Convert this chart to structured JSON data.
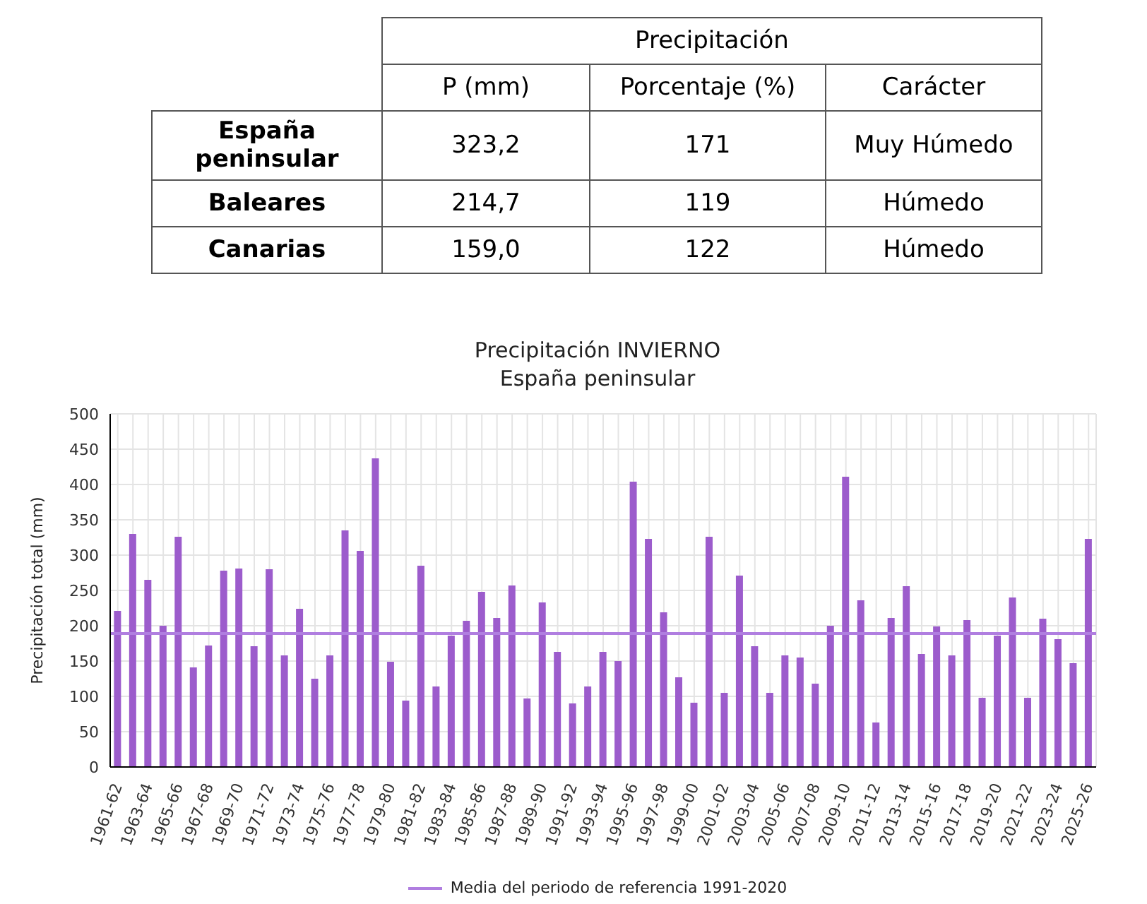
{
  "chart_data": [
    {
      "type": "other",
      "title": "Precipitación",
      "categories": [
        "P (mm)",
        "Porcentaje (%)",
        "Carácter"
      ],
      "y_categories": [
        "España peninsular",
        "Baleares",
        "Canarias"
      ],
      "cell_labels": [
        [
          "323,2",
          "171",
          "Muy Húmedo"
        ],
        [
          "214,7",
          "119",
          "Húmedo"
        ],
        [
          "159,0",
          "122",
          "Húmedo"
        ]
      ]
    },
    {
      "type": "bar",
      "title": "Precipitación INVIERNO",
      "subtitle": "España peninsular",
      "ylabel": "Precipitación total (mm)",
      "categories": [
        "1961-62",
        null,
        "1963-64",
        null,
        "1965-66",
        null,
        "1967-68",
        null,
        "1969-70",
        null,
        "1971-72",
        null,
        "1973-74",
        null,
        "1975-76",
        null,
        "1977-78",
        null,
        "1979-80",
        null,
        "1981-82",
        null,
        "1983-84",
        null,
        "1985-86",
        null,
        "1987-88",
        null,
        "1989-90",
        null,
        "1991-92",
        null,
        "1993-94",
        null,
        "1995-96",
        null,
        "1997-98",
        null,
        "1999-00",
        null,
        "2001-02",
        null,
        "2003-04",
        null,
        "2005-06",
        null,
        "2007-08",
        null,
        "2009-10",
        null,
        "2011-12",
        null,
        "2013-14",
        null,
        "2015-16",
        null,
        "2017-18",
        null,
        "2019-20",
        null,
        "2021-22",
        null,
        "2023-24",
        null,
        "2025-26"
      ],
      "values": [
        221,
        330,
        265,
        200,
        326,
        141,
        172,
        278,
        281,
        171,
        280,
        158,
        224,
        125,
        158,
        335,
        306,
        437,
        149,
        94,
        285,
        114,
        186,
        207,
        248,
        211,
        257,
        97,
        233,
        163,
        90,
        114,
        163,
        150,
        404,
        323,
        219,
        127,
        91,
        326,
        105,
        271,
        171,
        105,
        158,
        155,
        118,
        200,
        411,
        236,
        63,
        211,
        256,
        160,
        199,
        158,
        208,
        98,
        186,
        240,
        98,
        210,
        181,
        147,
        323
      ],
      "color": "#9c5ccc",
      "ylim": [
        0,
        500
      ],
      "yticks": [
        0,
        50,
        100,
        150,
        200,
        250,
        300,
        350,
        400,
        450,
        500
      ],
      "grid": true,
      "legend": "bottom",
      "ref_lines": [
        {
          "axis": "y",
          "value": 189,
          "label": "Media del periodo de referencia 1991-2020",
          "color": "#b07ee0"
        }
      ]
    }
  ]
}
